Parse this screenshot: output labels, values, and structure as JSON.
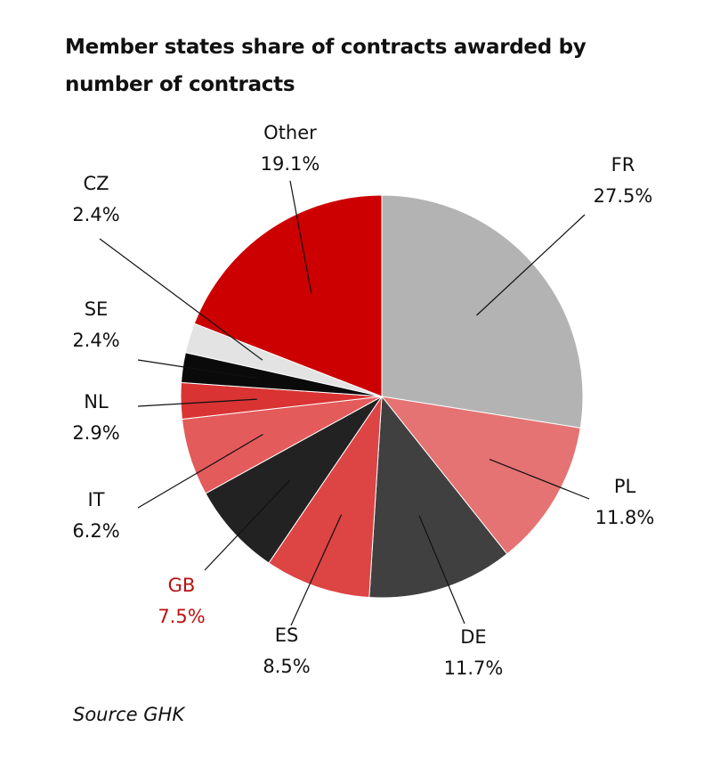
{
  "chart_data": {
    "type": "pie",
    "title": "Member states share of contracts awarded  by number of contracts",
    "slices": [
      {
        "label": "FR",
        "value": 27.5,
        "display": "27.5%",
        "color": "#b3b3b3",
        "label_color": "#111111"
      },
      {
        "label": "PL",
        "value": 11.8,
        "display": "11.8%",
        "color": "#e57373",
        "label_color": "#111111"
      },
      {
        "label": "DE",
        "value": 11.7,
        "display": "11.7%",
        "color": "#404040",
        "label_color": "#111111"
      },
      {
        "label": "ES",
        "value": 8.5,
        "display": "8.5%",
        "color": "#dd4444",
        "label_color": "#111111"
      },
      {
        "label": "GB",
        "value": 7.5,
        "display": "7.5%",
        "color": "#222222",
        "label_color": "#bb1111"
      },
      {
        "label": "IT",
        "value": 6.2,
        "display": "6.2%",
        "color": "#e35b5b",
        "label_color": "#111111"
      },
      {
        "label": "NL",
        "value": 2.9,
        "display": "2.9%",
        "color": "#d93333",
        "label_color": "#111111"
      },
      {
        "label": "SE",
        "value": 2.4,
        "display": "2.4%",
        "color": "#0a0a0a",
        "label_color": "#111111"
      },
      {
        "label": "CZ",
        "value": 2.4,
        "display": "2.4%",
        "color": "#e3e3e3",
        "label_color": "#111111"
      },
      {
        "label": "Other",
        "value": 19.1,
        "display": "19.1%",
        "color": "#cc0000",
        "label_color": "#111111"
      }
    ],
    "start_angle": "12 o'clock",
    "direction": "clockwise",
    "legend": "none"
  },
  "source": "Source GHK"
}
